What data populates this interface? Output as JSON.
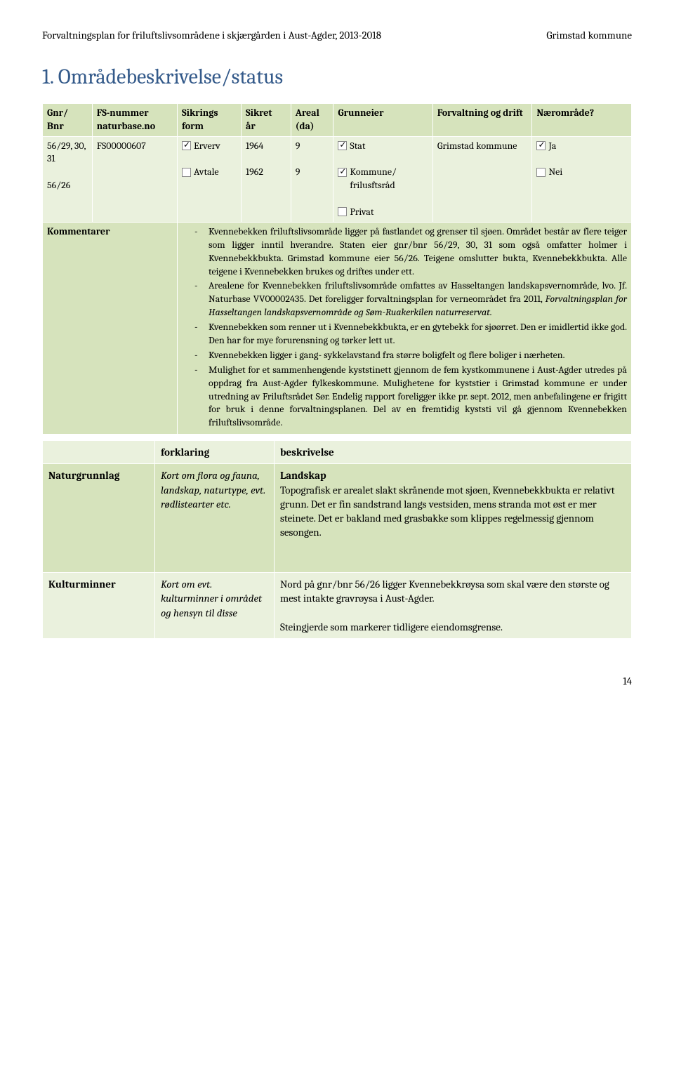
{
  "header": {
    "left": "Forvaltningsplan for friluftslivsområdene i skjærgården i Aust-Agder, 2013-2018",
    "right": "Grimstad kommune"
  },
  "title": "1. Områdebeskrivelse/status",
  "table": {
    "headers": [
      "Gnr/\nBnr",
      "FS-nummer naturbase.no",
      "Sikrings\nform",
      "Sikret\når",
      "Areal\n(da)",
      "Grunneier",
      "Forvaltning og drift",
      "Nærområde?"
    ],
    "r1": {
      "c0a": "56/29, 30, 31",
      "c0b": "56/26",
      "c1": "FS00000607",
      "c2a": "Erverv",
      "c2b": "Avtale",
      "c3a": "1964",
      "c3b": "1962",
      "c4a": "9",
      "c4b": "9",
      "c5a": "Stat",
      "c5b": "Kommune/\nfrilusftsråd",
      "c5c": "Privat",
      "c6": "Grimstad kommune",
      "c7a": "Ja",
      "c7b": "Nei"
    },
    "kommentarer_label": "Kommentarer",
    "kommentarer": [
      "Kvennebekken friluftslivsområde ligger på fastlandet og grenser til sjøen. Området består av flere teiger som ligger inntil hverandre. Staten eier gnr/bnr 56/29, 30, 31 som også omfatter holmer i Kvennebekkbukta. Grimstad kommune eier 56/26. Teigene omslutter bukta, Kvennebekkbukta. Alle teigene i Kvennebekken brukes og driftes under ett.",
      "Arealene for Kvennebekken friluftslivsområde omfattes av Hasseltangen landskapsvernområde, lvo. Jf. Naturbase VV00002435. Det foreligger forvaltningsplan for verneområdet fra 2011, <span class=\"italic\">Forvaltningsplan for Hasseltangen landskapsvernområde og Søm-Ruakerkilen naturreservat.</span>",
      "Kvennebekken som renner ut i Kvennebekkbukta, er en gytebekk for sjøørret. Den er imidlertid ikke god. Den har for mye forurensning og tørker lett ut.",
      "Kvennebekken ligger i gang- sykkelavstand fra større boligfelt og flere boliger i nærheten.",
      "Mulighet for et sammenhengende kyststinett gjennom de fem kystkommunene i Aust-Agder utredes på oppdrag fra Aust-Agder fylkeskommune. Mulighetene for kyststier i Grimstad kommune er under utredning av Friluftsrådet Sør. Endelig rapport foreligger ikke pr. sept. 2012, men anbefalingene er frigitt for bruk i denne forvaltningsplanen. Del av en fremtidig kyststi vil gå gjennom Kvennebekken friluftslivsområde."
    ]
  },
  "sub": {
    "h1": "forklaring",
    "h2": "beskrivelse",
    "r1": {
      "label": "Naturgrunnlag",
      "forklaring": "Kort om flora og fauna, landskap, naturtype, evt. rødlistearter etc.",
      "besk_title": "Landskap",
      "besk": "Topografisk er arealet slakt skrånende mot sjøen, Kvennebekkbukta er relativt grunn. Det er fin sandstrand langs vestsiden, mens stranda mot øst er mer steinete. Det er bakland med grasbakke som klippes regelmessig gjennom sesongen."
    },
    "r2": {
      "label": "Kulturminner",
      "forklaring": "Kort om evt. kulturminner i området og hensyn til disse",
      "besk1": "Nord på gnr/bnr 56/26 ligger Kvennebekkrøysa som skal være den største og mest intakte gravrøysa i Aust-Agder.",
      "besk2": "Steingjerde som markerer tidligere eiendomsgrense."
    }
  },
  "pagenum": "14",
  "colors": {
    "heading": "#345a8a",
    "bg_dark": "#d6e3bc",
    "bg_light": "#eaf1dd"
  }
}
